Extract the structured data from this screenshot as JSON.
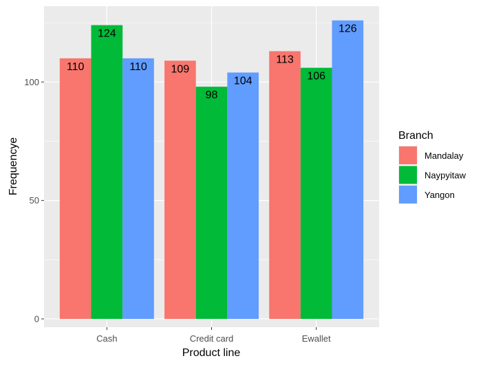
{
  "chart_data": {
    "type": "bar",
    "categories": [
      "Cash",
      "Credit card",
      "Ewallet"
    ],
    "series": [
      {
        "name": "Mandalay",
        "values": [
          110,
          109,
          113
        ],
        "color": "#F8766D"
      },
      {
        "name": "Naypyitaw",
        "values": [
          124,
          98,
          106
        ],
        "color": "#00BA38"
      },
      {
        "name": "Yangon",
        "values": [
          110,
          104,
          126
        ],
        "color": "#619CFF"
      }
    ],
    "xlabel": "Product line",
    "ylabel": "Frequencye",
    "ylim": [
      -3.5,
      132
    ],
    "yticks": [
      0,
      50,
      100
    ],
    "legend_title": "Branch",
    "legend_position": "right",
    "grid": true,
    "panel_background": "#EBEBEB"
  }
}
